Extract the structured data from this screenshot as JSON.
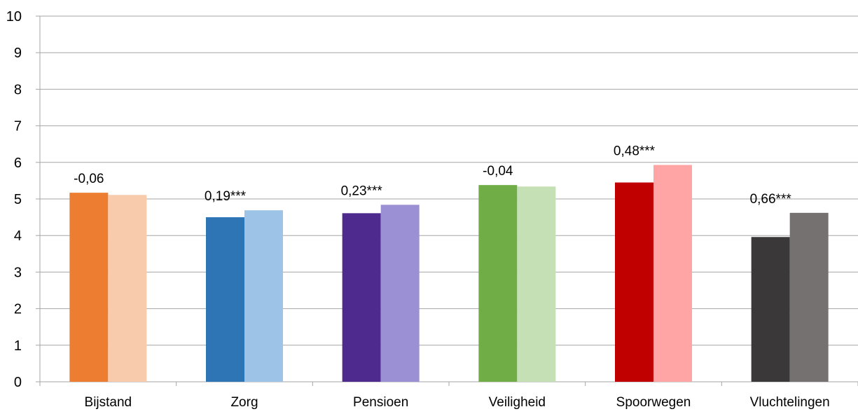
{
  "chart_data": {
    "type": "bar",
    "title": "",
    "xlabel": "",
    "ylabel": "",
    "ylim": [
      0,
      10
    ],
    "yticks": [
      "0",
      "1",
      "2",
      "3",
      "4",
      "5",
      "6",
      "7",
      "8",
      "9",
      "10"
    ],
    "grid": "horizontal",
    "legend": "none",
    "categories": [
      "Bijstand",
      "Zorg",
      "Pensioen",
      "Veiligheid",
      "Spoorwegen",
      "Vluchtelingen"
    ],
    "series": [
      {
        "values": [
          5.17,
          4.5,
          4.61,
          5.38,
          5.45,
          3.96
        ]
      },
      {
        "values": [
          5.11,
          4.69,
          4.84,
          5.34,
          5.93,
          4.62
        ]
      }
    ],
    "colors": [
      [
        "#ed7d31",
        "#f8cbad"
      ],
      [
        "#2e75b6",
        "#9dc3e6"
      ],
      [
        "#4e2a8e",
        "#9b90d3"
      ],
      [
        "#70ad47",
        "#c5e0b4"
      ],
      [
        "#c00000",
        "#ffa5a5"
      ],
      [
        "#3a3838",
        "#767171"
      ]
    ],
    "annotations": [
      "-0,06",
      "0,19***",
      "0,23***",
      "-0,04",
      "0,48***",
      "0,66***"
    ]
  }
}
